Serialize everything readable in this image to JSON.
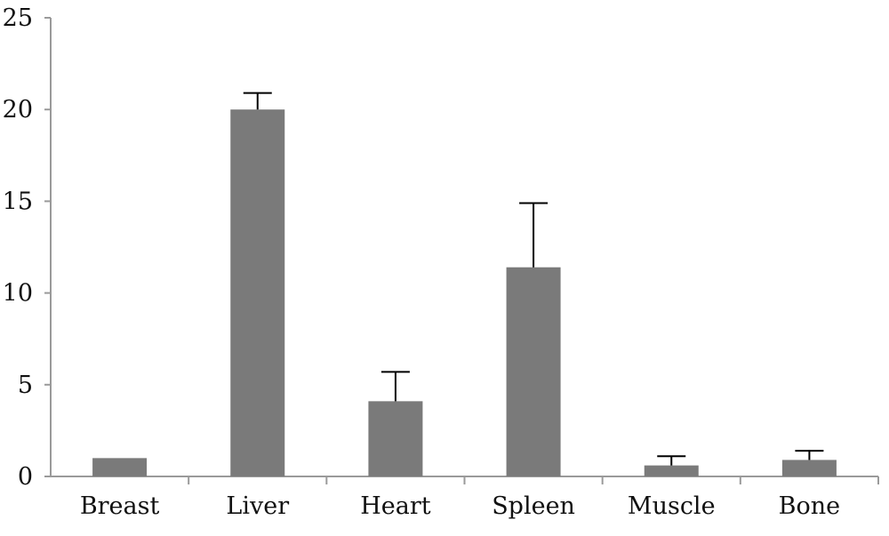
{
  "colors": {
    "bar": "#7a7a7a",
    "axis": "#9a9a9a",
    "error_bar": "#000000"
  },
  "chart_data": {
    "type": "bar",
    "title": "",
    "xlabel": "",
    "ylabel": "",
    "categories": [
      "Breast",
      "Liver",
      "Heart",
      "Spleen",
      "Muscle",
      "Bone"
    ],
    "values": [
      1.0,
      20.0,
      4.1,
      11.4,
      0.6,
      0.9
    ],
    "error_upper": [
      null,
      20.9,
      5.7,
      14.9,
      1.1,
      1.4
    ],
    "ylim": [
      0,
      25
    ],
    "yticks": [
      "0",
      "5",
      "10",
      "15",
      "20",
      "25"
    ],
    "ytick_values": [
      0,
      5,
      10,
      15,
      20,
      25
    ],
    "grid": false,
    "legend": "none"
  }
}
